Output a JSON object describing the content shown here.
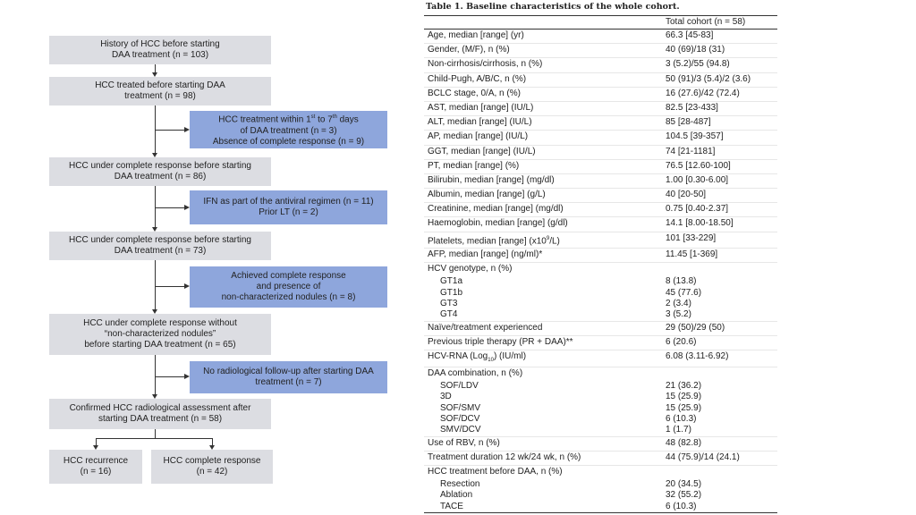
{
  "flowchart": {
    "box1": {
      "line1": "History of HCC before starting",
      "line2": "DAA treatment (n = 103)"
    },
    "box2": {
      "line1": "HCC treated before starting DAA",
      "line2": "treatment (n = 98)"
    },
    "excl1": {
      "line1a": "HCC treatment within 1",
      "sup1": "st",
      "line1b": " to 7",
      "sup2": "th",
      "line1c": " days",
      "line2": "of DAA treatment (n = 3)",
      "line3": "Absence of complete response (n = 9)"
    },
    "box3": {
      "line1": "HCC under complete response before starting",
      "line2": "DAA treatment (n = 86)"
    },
    "excl2": {
      "line1": "IFN as part of the antiviral regimen (n = 11)",
      "line2": "Prior LT (n = 2)"
    },
    "box4": {
      "line1": "HCC under complete response before starting",
      "line2": "DAA treatment (n = 73)"
    },
    "excl3": {
      "line1": "Achieved complete response",
      "line2": "and presence of",
      "line3": "non-characterized nodules (n = 8)"
    },
    "box5": {
      "line1": "HCC under complete response without",
      "line2": "“non-characterized nodules”",
      "line3": "before starting DAA treatment (n = 65)"
    },
    "excl4": {
      "line1": "No radiological follow-up after starting DAA",
      "line2": "treatment (n = 7)"
    },
    "box6": {
      "line1": "Confirmed HCC radiological assessment after",
      "line2": "starting DAA treatment (n = 58)"
    },
    "box7": {
      "line1": "HCC recurrence",
      "line2": "(n = 16)"
    },
    "box8": {
      "line1": "HCC complete response",
      "line2": "(n = 42)"
    }
  },
  "table": {
    "caption": "Table 1. Baseline characteristics of the whole cohort.",
    "header": "Total cohort (n = 58)",
    "rows": [
      {
        "label": "Age, median [range] (yr)",
        "value": "66.3 [45-83]"
      },
      {
        "label": "Gender, (M/F), n (%)",
        "value": "40 (69)/18 (31)"
      },
      {
        "label": "Non-cirrhosis/cirrhosis, n (%)",
        "value": "3 (5.2)/55 (94.8)"
      },
      {
        "label": "Child-Pugh, A/B/C, n (%)",
        "value": "50 (91)/3 (5.4)/2 (3.6)"
      },
      {
        "label": "BCLC stage, 0/A, n (%)",
        "value": "16 (27.6)/42 (72.4)"
      },
      {
        "label": "AST, median [range] (IU/L)",
        "value": "82.5 [23-433]"
      },
      {
        "label": "ALT, median [range] (IU/L)",
        "value": "85 [28-487]"
      },
      {
        "label": "AP, median [range] (IU/L)",
        "value": "104.5 [39-357]"
      },
      {
        "label": "GGT, median [range] (IU/L)",
        "value": "74 [21-1181]"
      },
      {
        "label": "PT, median [range] (%)",
        "value": "76.5 [12.60-100]"
      },
      {
        "label": "Bilirubin, median [range] (mg/dl)",
        "value": "1.00 [0.30-6.00]"
      },
      {
        "label": "Albumin, median [range] (g/L)",
        "value": "40 [20-50]"
      },
      {
        "label": "Creatinine, median [range] (mg/dl)",
        "value": "0.75 [0.40-2.37]"
      },
      {
        "label": "Haemoglobin, median [range] (g/dl)",
        "value": "14.1 [8.00-18.50]"
      },
      {
        "label_a": "Platelets, median [range] (x10",
        "label_sup": "9",
        "label_b": "/L)",
        "value": "101 [33-229]"
      },
      {
        "label": "AFP, median [range] (ng/ml)*",
        "value": "11.45 [1-369]"
      }
    ],
    "genotype": {
      "label": "HCV genotype, n (%)",
      "items": [
        {
          "label": "GT1a",
          "value": "8 (13.8)"
        },
        {
          "label": "GT1b",
          "value": "45 (77.6)"
        },
        {
          "label": "GT3",
          "value": "2 (3.4)"
        },
        {
          "label": "GT4",
          "value": "3 (5.2)"
        }
      ]
    },
    "rows2": [
      {
        "label": "Naïve/treatment experienced",
        "value": "29 (50)/29 (50)"
      },
      {
        "label": "Previous triple therapy (PR + DAA)**",
        "value": "6 (20.6)"
      },
      {
        "label_a": "HCV-RNA (Log",
        "label_sub": "10",
        "label_b": ") (IU/ml)",
        "value": "6.08 (3.11-6.92)"
      }
    ],
    "daa": {
      "label": "DAA combination, n (%)",
      "items": [
        {
          "label": "SOF/LDV",
          "value": "21 (36.2)"
        },
        {
          "label": "3D",
          "value": "15 (25.9)"
        },
        {
          "label": "SOF/SMV",
          "value": "15 (25.9)"
        },
        {
          "label": "SOF/DCV",
          "value": "6 (10.3)"
        },
        {
          "label": "SMV/DCV",
          "value": "1 (1.7)"
        }
      ]
    },
    "rows3": [
      {
        "label": "Use of RBV, n (%)",
        "value": "48 (82.8)"
      },
      {
        "label": "Treatment duration 12 wk/24 wk, n (%)",
        "value": "44 (75.9)/14 (24.1)"
      }
    ],
    "hcc": {
      "label": "HCC treatment before DAA, n (%)",
      "items": [
        {
          "label": "Resection",
          "value": "20 (34.5)"
        },
        {
          "label": "Ablation",
          "value": "32 (55.2)"
        },
        {
          "label": "TACE",
          "value": "6 (10.3)"
        }
      ]
    }
  }
}
